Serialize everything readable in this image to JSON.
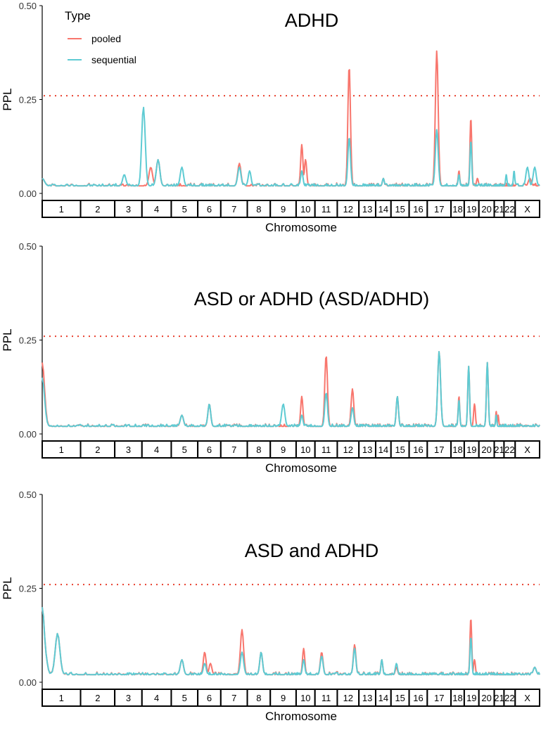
{
  "colors": {
    "pooled": "#f8766d",
    "sequential": "#5ecbd3",
    "threshold": "#e8402f"
  },
  "legend": {
    "title": "Type",
    "items": [
      {
        "label": "pooled",
        "color": "#f8766d"
      },
      {
        "label": "sequential",
        "color": "#5ecbd3"
      }
    ]
  },
  "chart_data": [
    {
      "type": "line",
      "title": "ADHD",
      "xlabel": "Chromosome",
      "ylabel": "PPL",
      "ylim": [
        0,
        0.5
      ],
      "yticks": [
        "0.00",
        "0.25",
        "0.50"
      ],
      "threshold": 0.26,
      "chromosomes": [
        "1",
        "2",
        "3",
        "4",
        "5",
        "6",
        "7",
        "8",
        "9",
        "10",
        "11",
        "12",
        "13",
        "14",
        "15",
        "16",
        "17",
        "18",
        "19",
        "20",
        "21",
        "22",
        "X"
      ],
      "baseline": 0.02,
      "series": [
        {
          "name": "pooled",
          "peaks": [
            [
              0.0,
              0.04
            ],
            [
              3.3,
              0.07
            ],
            [
              3.55,
              0.09
            ],
            [
              6.7,
              0.08
            ],
            [
              9.3,
              0.13
            ],
            [
              9.5,
              0.09
            ],
            [
              11.55,
              0.34
            ],
            [
              13.5,
              0.04
            ],
            [
              16.4,
              0.38
            ],
            [
              17.6,
              0.06
            ],
            [
              18.45,
              0.2
            ],
            [
              18.9,
              0.04
            ],
            [
              22.6,
              0.04
            ]
          ]
        },
        {
          "name": "sequential",
          "peaks": [
            [
              0.0,
              0.04
            ],
            [
              2.35,
              0.05
            ],
            [
              3.05,
              0.23
            ],
            [
              3.55,
              0.09
            ],
            [
              4.4,
              0.07
            ],
            [
              6.7,
              0.07
            ],
            [
              7.1,
              0.06
            ],
            [
              9.3,
              0.06
            ],
            [
              11.55,
              0.15
            ],
            [
              13.5,
              0.04
            ],
            [
              16.4,
              0.17
            ],
            [
              17.6,
              0.05
            ],
            [
              18.45,
              0.14
            ],
            [
              21.2,
              0.05
            ],
            [
              21.9,
              0.06
            ],
            [
              22.5,
              0.07
            ],
            [
              22.8,
              0.07
            ]
          ]
        }
      ]
    },
    {
      "type": "line",
      "title": "ASD or ADHD (ASD/ADHD)",
      "xlabel": "Chromosome",
      "ylabel": "PPL",
      "ylim": [
        0,
        0.5
      ],
      "yticks": [
        "0.00",
        "0.25",
        "0.50"
      ],
      "threshold": 0.26,
      "chromosomes": [
        "1",
        "2",
        "3",
        "4",
        "5",
        "6",
        "7",
        "8",
        "9",
        "10",
        "11",
        "12",
        "13",
        "14",
        "15",
        "16",
        "17",
        "18",
        "19",
        "20",
        "21",
        "22",
        "X"
      ],
      "baseline": 0.02,
      "series": [
        {
          "name": "pooled",
          "peaks": [
            [
              0.0,
              0.19
            ],
            [
              4.4,
              0.05
            ],
            [
              5.5,
              0.08
            ],
            [
              9.3,
              0.1
            ],
            [
              10.5,
              0.21
            ],
            [
              11.7,
              0.12
            ],
            [
              14.35,
              0.1
            ],
            [
              16.5,
              0.22
            ],
            [
              17.6,
              0.1
            ],
            [
              18.3,
              0.18
            ],
            [
              18.7,
              0.08
            ],
            [
              19.55,
              0.19
            ],
            [
              20.2,
              0.06
            ],
            [
              20.4,
              0.05
            ]
          ]
        },
        {
          "name": "sequential",
          "peaks": [
            [
              0.0,
              0.15
            ],
            [
              4.4,
              0.05
            ],
            [
              5.5,
              0.08
            ],
            [
              8.5,
              0.08
            ],
            [
              9.3,
              0.05
            ],
            [
              10.5,
              0.11
            ],
            [
              11.7,
              0.07
            ],
            [
              14.35,
              0.1
            ],
            [
              16.5,
              0.22
            ],
            [
              17.6,
              0.09
            ],
            [
              18.3,
              0.18
            ],
            [
              19.55,
              0.19
            ],
            [
              20.2,
              0.05
            ]
          ]
        }
      ]
    },
    {
      "type": "line",
      "title": "ASD and ADHD",
      "xlabel": "Chromosome",
      "ylabel": "PPL",
      "ylim": [
        0,
        0.5
      ],
      "yticks": [
        "0.00",
        "0.25",
        "0.50"
      ],
      "threshold": 0.26,
      "chromosomes": [
        "1",
        "2",
        "3",
        "4",
        "5",
        "6",
        "7",
        "8",
        "9",
        "10",
        "11",
        "12",
        "13",
        "14",
        "15",
        "16",
        "17",
        "18",
        "19",
        "20",
        "21",
        "22",
        "X"
      ],
      "baseline": 0.02,
      "series": [
        {
          "name": "pooled",
          "peaks": [
            [
              0.0,
              0.2
            ],
            [
              0.05,
              0.1
            ],
            [
              0.4,
              0.13
            ],
            [
              4.4,
              0.06
            ],
            [
              5.3,
              0.08
            ],
            [
              5.55,
              0.05
            ],
            [
              6.8,
              0.14
            ],
            [
              7.6,
              0.08
            ],
            [
              9.4,
              0.09
            ],
            [
              10.3,
              0.08
            ],
            [
              11.8,
              0.1
            ],
            [
              13.4,
              0.06
            ],
            [
              14.3,
              0.04
            ],
            [
              18.45,
              0.17
            ],
            [
              18.7,
              0.06
            ],
            [
              22.8,
              0.04
            ]
          ]
        },
        {
          "name": "sequential",
          "peaks": [
            [
              0.0,
              0.2
            ],
            [
              0.05,
              0.1
            ],
            [
              0.4,
              0.13
            ],
            [
              4.4,
              0.06
            ],
            [
              5.3,
              0.05
            ],
            [
              6.8,
              0.08
            ],
            [
              7.6,
              0.08
            ],
            [
              9.4,
              0.06
            ],
            [
              10.3,
              0.07
            ],
            [
              11.8,
              0.09
            ],
            [
              13.4,
              0.06
            ],
            [
              14.3,
              0.05
            ],
            [
              18.45,
              0.12
            ],
            [
              22.8,
              0.04
            ]
          ]
        }
      ]
    }
  ]
}
